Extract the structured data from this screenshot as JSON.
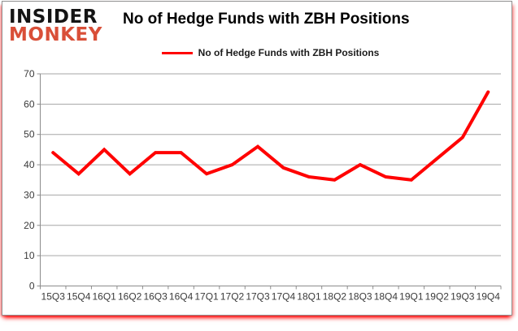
{
  "logo": {
    "line1": "INSIDER",
    "line2": "MONKEY"
  },
  "title": "No of Hedge Funds with ZBH Positions",
  "legend": {
    "label": "No of Hedge Funds with ZBH Positions"
  },
  "colors": {
    "series_line": "#ff0000",
    "logo_black": "#141414",
    "logo_red": "#d94f38",
    "grid": "#a6a6a6",
    "axis": "#8c8c8c",
    "tick_text": "#3a3a3a",
    "frame_glow": "#ff0000"
  },
  "chart_data": {
    "type": "line",
    "title": "No of Hedge Funds with ZBH Positions",
    "categories": [
      "15Q3",
      "15Q4",
      "16Q1",
      "16Q2",
      "16Q3",
      "16Q4",
      "17Q1",
      "17Q2",
      "17Q3",
      "17Q4",
      "18Q1",
      "18Q2",
      "18Q3",
      "18Q4",
      "19Q1",
      "19Q2",
      "19Q3",
      "19Q4"
    ],
    "series": [
      {
        "name": "No of Hedge Funds with ZBH Positions",
        "color": "#ff0000",
        "values": [
          44,
          37,
          45,
          37,
          44,
          44,
          37,
          40,
          46,
          39,
          36,
          35,
          40,
          36,
          35,
          42,
          49,
          64
        ]
      }
    ],
    "xlabel": "",
    "ylabel": "",
    "ylim": [
      0,
      70
    ],
    "yticks": [
      0,
      10,
      20,
      30,
      40,
      50,
      60,
      70
    ],
    "grid": true,
    "legend_position": "top"
  }
}
